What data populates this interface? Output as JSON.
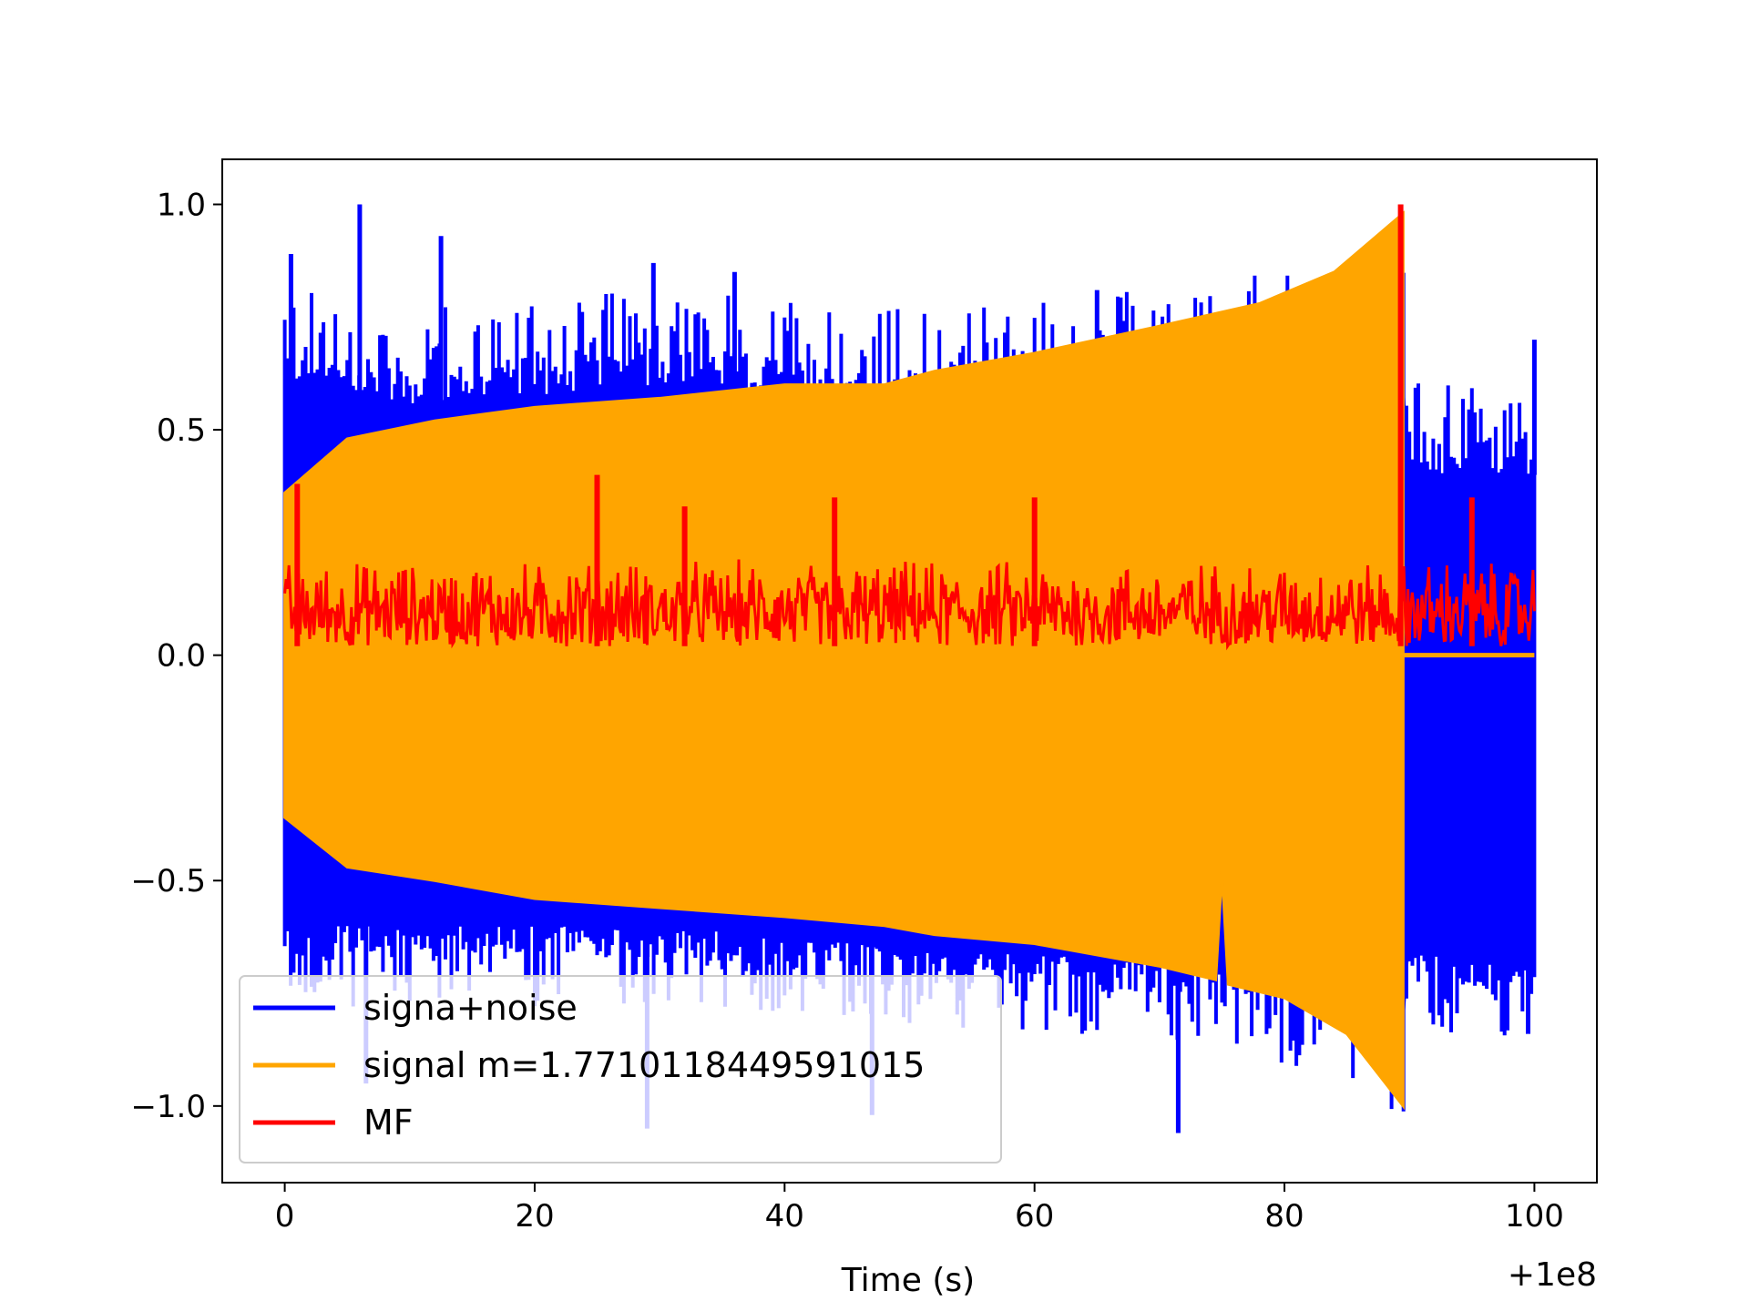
{
  "chart_data": {
    "type": "line",
    "title": "",
    "xlabel": "Time (s)",
    "ylabel": "",
    "x_offset_label": "+1e8",
    "xlim": [
      -5,
      105
    ],
    "ylim": [
      -1.17,
      1.1
    ],
    "x_ticks": [
      0,
      20,
      40,
      60,
      80,
      100
    ],
    "x_tick_labels": [
      "0",
      "20",
      "40",
      "60",
      "80",
      "100"
    ],
    "y_ticks": [
      -1.0,
      -0.5,
      0.0,
      0.5,
      1.0
    ],
    "y_tick_labels": [
      "−1.0",
      "−0.5",
      "0.0",
      "0.5",
      "1.0"
    ],
    "grid": false,
    "legend_position": "lower-left",
    "series": [
      {
        "name": "signa+noise",
        "color": "#0000ff",
        "x_range": [
          0,
          100
        ],
        "upper_envelope": [
          [
            0,
            0.6
          ],
          [
            10,
            0.55
          ],
          [
            30,
            0.6
          ],
          [
            50,
            0.55
          ],
          [
            70,
            0.6
          ],
          [
            85,
            0.65
          ],
          [
            89.5,
            0.65
          ],
          [
            90,
            0.4
          ],
          [
            100,
            0.4
          ]
        ],
        "lower_envelope": [
          [
            0,
            -0.6
          ],
          [
            10,
            -0.6
          ],
          [
            30,
            -0.6
          ],
          [
            50,
            -0.65
          ],
          [
            70,
            -0.68
          ],
          [
            85,
            -0.75
          ],
          [
            89.5,
            -0.85
          ],
          [
            90,
            -0.65
          ],
          [
            100,
            -0.7
          ]
        ],
        "spikes": [
          [
            0.5,
            0.89
          ],
          [
            6,
            1.0
          ],
          [
            12.5,
            0.93
          ],
          [
            29.5,
            0.87
          ],
          [
            36,
            0.85
          ],
          [
            65,
            0.81
          ],
          [
            89,
            0.85
          ],
          [
            100,
            0.7
          ],
          [
            6.5,
            -0.95
          ],
          [
            29,
            -1.05
          ],
          [
            47,
            -1.02
          ],
          [
            71.5,
            -1.06
          ],
          [
            99.5,
            -0.84
          ]
        ]
      },
      {
        "name": "signal m=1.7710118449591015",
        "color": "#ffa500",
        "x_range": [
          0,
          89.5
        ],
        "upper_envelope": [
          [
            0,
            0.36
          ],
          [
            5,
            0.48
          ],
          [
            12,
            0.52
          ],
          [
            20,
            0.55
          ],
          [
            30,
            0.57
          ],
          [
            40,
            0.6
          ],
          [
            48,
            0.6
          ],
          [
            52,
            0.63
          ],
          [
            60,
            0.67
          ],
          [
            70,
            0.73
          ],
          [
            78,
            0.78
          ],
          [
            84,
            0.85
          ],
          [
            89.5,
            0.98
          ]
        ],
        "lower_envelope": [
          [
            0,
            -0.36
          ],
          [
            5,
            -0.47
          ],
          [
            12,
            -0.5
          ],
          [
            20,
            -0.54
          ],
          [
            30,
            -0.56
          ],
          [
            40,
            -0.58
          ],
          [
            48,
            -0.6
          ],
          [
            52,
            -0.62
          ],
          [
            60,
            -0.64
          ],
          [
            70,
            -0.69
          ],
          [
            74.5,
            -0.72
          ],
          [
            75,
            -0.48
          ],
          [
            75.5,
            -0.73
          ],
          [
            80,
            -0.76
          ],
          [
            85,
            -0.84
          ],
          [
            89.5,
            -1.0
          ]
        ],
        "tail": [
          [
            89.5,
            0.0
          ],
          [
            100,
            0.0
          ]
        ]
      },
      {
        "name": "MF",
        "color": "#ff0000",
        "x_range": [
          0,
          100
        ],
        "baseline": 0.02,
        "typical_top": 0.22,
        "spikes": [
          [
            1,
            0.38
          ],
          [
            25,
            0.4
          ],
          [
            32,
            0.33
          ],
          [
            44,
            0.35
          ],
          [
            60,
            0.35
          ],
          [
            89.3,
            1.0
          ],
          [
            95,
            0.35
          ]
        ]
      }
    ]
  }
}
